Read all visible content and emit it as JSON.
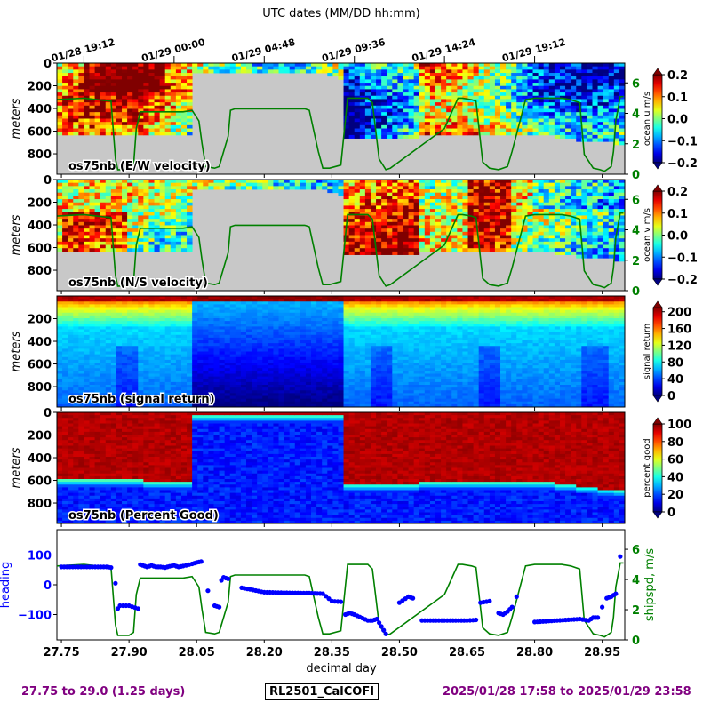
{
  "figure": {
    "top_title": "UTC dates (MM/DD hh:mm)",
    "date_ticks": [
      "01/28 19:12",
      "01/29 00:00",
      "01/29 04:48",
      "01/29 09:36",
      "01/29 14:24",
      "01/29 19:12"
    ],
    "footer": {
      "range": "27.75 to 29.0 (1.25 days)",
      "cruise": "RL2501_CalCOFI",
      "dates": "2025/01/28 17:58 to 2025/01/29 23:58"
    },
    "colors": {
      "speed_line": "#008000",
      "heading_points": "#0000ff",
      "bad_data": "#c8c8c8",
      "footer_text": "#800080"
    }
  },
  "chart_data": [
    {
      "type": "heatmap",
      "panel_label": "os75nb (E/W velocity)",
      "ylabel": "meters",
      "y_ticks": [
        0,
        200,
        400,
        600,
        800
      ],
      "ylim": [
        980,
        0
      ],
      "xlim": [
        27.74,
        29.0
      ],
      "colorbar": {
        "label": "ocean u m/s",
        "ticks": [
          "0.2",
          "0.1",
          "0.0",
          "−0.1",
          "−0.2"
        ],
        "range": [
          -0.2,
          0.2
        ],
        "colormap": "jet"
      },
      "overlay": {
        "name": "shipspd",
        "axis_ticks": [
          0,
          2,
          4,
          6
        ],
        "color": "#008000"
      },
      "bottom_depth_m": [
        620,
        620,
        620,
        620,
        620,
        640,
        640,
        640,
        630,
        630,
        630,
        630,
        640,
        640,
        650,
        660,
        660,
        660,
        660,
        640,
        640,
        640,
        640,
        640,
        640,
        640,
        660,
        680,
        700,
        710
      ]
    },
    {
      "type": "heatmap",
      "panel_label": "os75nb (N/S velocity)",
      "ylabel": "meters",
      "y_ticks": [
        0,
        200,
        400,
        600,
        800
      ],
      "ylim": [
        980,
        0
      ],
      "xlim": [
        27.74,
        29.0
      ],
      "colorbar": {
        "label": "ocean v m/s",
        "ticks": [
          "0.2",
          "0.1",
          "0.0",
          "−0.1",
          "−0.2"
        ],
        "range": [
          -0.2,
          0.2
        ],
        "colormap": "jet"
      },
      "overlay": {
        "name": "shipspd",
        "axis_ticks": [
          0,
          2,
          4,
          6
        ],
        "color": "#008000"
      }
    },
    {
      "type": "heatmap",
      "panel_label": "os75nb (signal return)",
      "ylabel": "meters",
      "y_ticks": [
        200,
        400,
        600,
        800
      ],
      "ylim": [
        980,
        0
      ],
      "xlim": [
        27.74,
        29.0
      ],
      "colorbar": {
        "label": "signal return",
        "ticks": [
          "200",
          "160",
          "120",
          "80",
          "40",
          "0"
        ],
        "range": [
          0,
          210
        ],
        "colormap": "jet"
      }
    },
    {
      "type": "heatmap",
      "panel_label": "os75nb (Percent Good)",
      "ylabel": "meters",
      "y_ticks": [
        0,
        200,
        400,
        600,
        800
      ],
      "ylim": [
        980,
        0
      ],
      "xlim": [
        27.74,
        29.0
      ],
      "colorbar": {
        "label": "percent good",
        "ticks": [
          "100",
          "80",
          "60",
          "40",
          "20",
          "0"
        ],
        "range": [
          0,
          100
        ],
        "colormap": "jet"
      }
    },
    {
      "type": "line",
      "xlabel": "decimal day",
      "x_ticks": [
        "27.75",
        "27.90",
        "28.05",
        "28.20",
        "28.35",
        "28.50",
        "28.65",
        "28.80",
        "28.95"
      ],
      "xlim": [
        27.74,
        29.0
      ],
      "left_axis": {
        "label": "heading",
        "ticks": [
          "100",
          "0",
          "−100"
        ],
        "range": [
          -185,
          185
        ],
        "color": "#0000ff"
      },
      "right_axis": {
        "label": "shipspd, m/s",
        "ticks": [
          "6",
          "4",
          "2",
          "0"
        ],
        "range": [
          0,
          7.3
        ],
        "color": "#008000"
      },
      "series": [
        {
          "name": "shipspd",
          "x": [
            27.74,
            27.8,
            27.86,
            27.87,
            27.875,
            27.9,
            27.91,
            27.916,
            27.925,
            28.0,
            28.02,
            28.04,
            28.055,
            28.062,
            28.07,
            28.09,
            28.1,
            28.12,
            28.125,
            28.135,
            28.26,
            28.29,
            28.3,
            28.32,
            28.33,
            28.345,
            28.37,
            28.385,
            28.43,
            28.44,
            28.455,
            28.47,
            28.48,
            28.6,
            28.63,
            28.64,
            28.66,
            28.67,
            28.685,
            28.7,
            28.72,
            28.74,
            28.75,
            28.78,
            28.8,
            28.86,
            28.88,
            28.9,
            28.91,
            28.93,
            28.945,
            28.955,
            28.97,
            28.975,
            28.98,
            28.99,
            28.997
          ],
          "y": [
            4.9,
            5.0,
            4.8,
            1.0,
            0.3,
            0.3,
            0.5,
            3.0,
            4.1,
            4.1,
            4.1,
            4.2,
            3.5,
            2.0,
            0.5,
            0.4,
            0.5,
            2.5,
            4.2,
            4.3,
            4.3,
            4.3,
            4.2,
            1.5,
            0.4,
            0.4,
            0.6,
            5.0,
            5.0,
            4.7,
            1.0,
            0.3,
            0.4,
            3.0,
            5.0,
            5.0,
            4.9,
            4.8,
            0.8,
            0.4,
            0.3,
            0.5,
            1.5,
            4.9,
            5.0,
            5.0,
            4.9,
            4.7,
            1.3,
            0.4,
            0.3,
            0.2,
            0.5,
            1.5,
            3.5,
            5.1,
            5.1
          ]
        },
        {
          "name": "heading",
          "x": [
            27.75,
            27.8,
            27.85,
            27.86,
            27.87,
            27.875,
            27.88,
            27.9,
            27.92,
            27.925,
            27.94,
            27.95,
            27.96,
            27.97,
            27.98,
            27.99,
            28.0,
            28.01,
            28.02,
            28.04,
            28.05,
            28.06,
            28.075,
            28.09,
            28.1,
            28.105,
            28.11,
            28.12,
            28.15,
            28.2,
            28.25,
            28.3,
            28.33,
            28.35,
            28.37,
            28.38,
            28.39,
            28.4,
            28.43,
            28.44,
            28.45,
            28.46,
            28.47,
            28.5,
            28.52,
            28.53,
            28.55,
            28.6,
            28.65,
            28.67,
            28.68,
            28.7,
            28.72,
            28.73,
            28.74,
            28.75,
            28.76,
            28.8,
            28.85,
            28.9,
            28.92,
            28.93,
            28.94,
            28.95,
            28.96,
            28.97,
            28.98,
            28.99
          ],
          "y": [
            60,
            60,
            60,
            58,
            5,
            -80,
            -70,
            -70,
            -80,
            68,
            60,
            65,
            60,
            60,
            58,
            62,
            65,
            60,
            63,
            70,
            75,
            78,
            -20,
            -70,
            -75,
            15,
            25,
            20,
            -10,
            -25,
            -27,
            -28,
            -30,
            -55,
            -57,
            -100,
            -95,
            -100,
            -120,
            -120,
            -115,
            -140,
            -165,
            -60,
            -40,
            -45,
            -120,
            -120,
            -120,
            -118,
            -60,
            -55,
            -95,
            -100,
            -90,
            -75,
            -40,
            -125,
            -120,
            -115,
            -120,
            -110,
            -110,
            -75,
            -45,
            -40,
            -30,
            95
          ]
        }
      ]
    }
  ]
}
